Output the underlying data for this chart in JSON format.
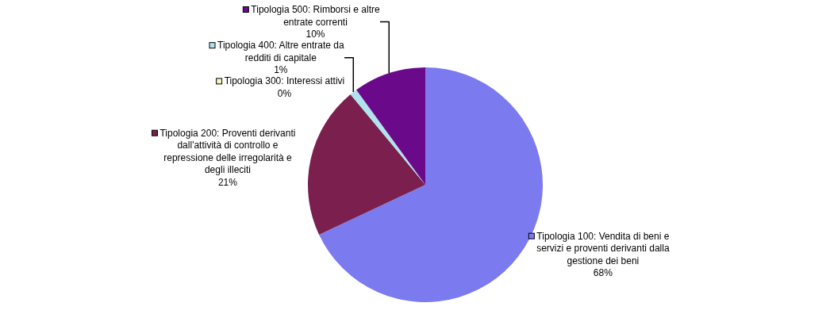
{
  "chart_data": {
    "type": "pie",
    "categories": [
      "Tipologia 100: Vendita di beni e servizi e proventi derivanti dalla gestione dei beni",
      "Tipologia 200: Proventi derivanti dall'attività di controllo e repressione delle irregolarità e degli illeciti",
      "Tipologia 300: Interessi attivi",
      "Tipologia 400: Altre entrate da redditi di capitale",
      "Tipologia 500: Rimborsi e altre entrate correnti"
    ],
    "values": [
      68,
      21,
      0,
      1,
      10
    ],
    "value_labels": [
      "68%",
      "21%",
      "0%",
      "1%",
      "10%"
    ],
    "colors": [
      "#7b7bef",
      "#7b1f4f",
      "#f5f5c0",
      "#b0e4ec",
      "#6a0a8a"
    ],
    "legend": true
  }
}
